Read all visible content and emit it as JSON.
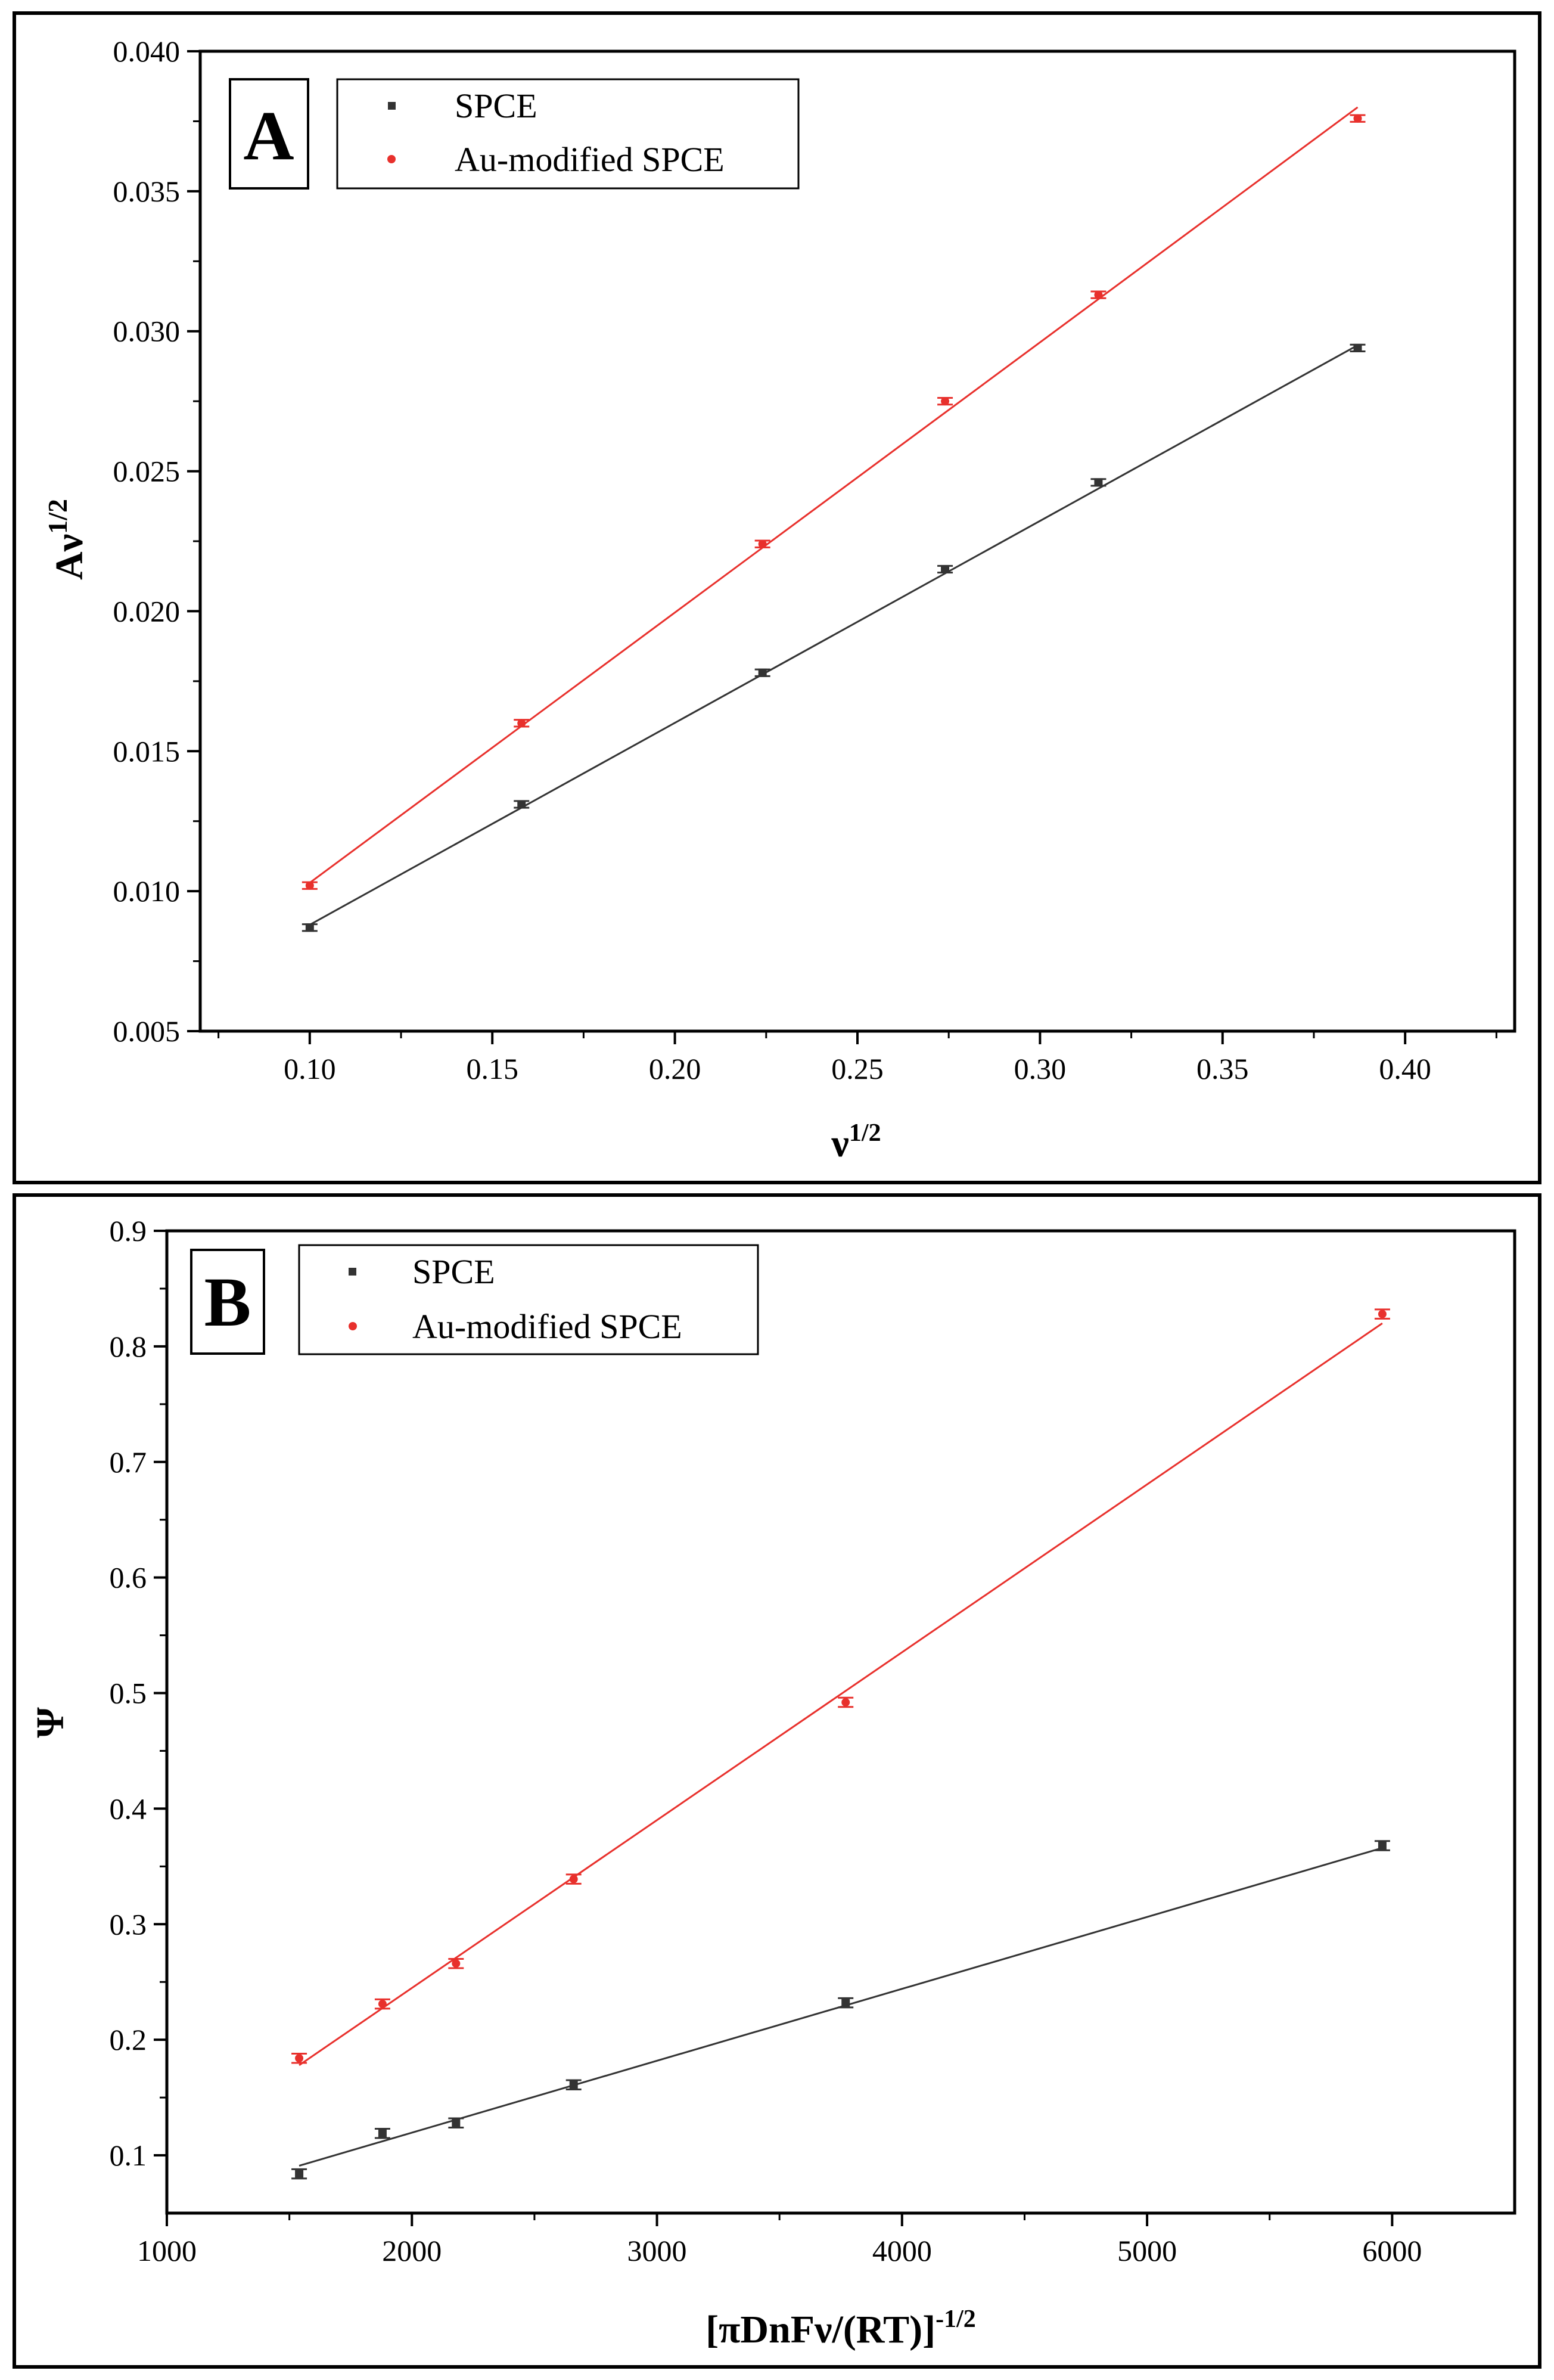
{
  "chart_data": [
    {
      "type": "scatter",
      "panel_label": "A",
      "xlabel": "ν",
      "xlabel_sup": "1/2",
      "ylabel": "Aν",
      "ylabel_sup": "1/2",
      "xlim": [
        0.07,
        0.43
      ],
      "ylim": [
        0.005,
        0.04
      ],
      "xticks": [
        "0.10",
        "0.15",
        "0.20",
        "0.25",
        "0.30",
        "0.35",
        "0.40"
      ],
      "yticks": [
        "0.005",
        "0.010",
        "0.015",
        "0.020",
        "0.025",
        "0.030",
        "0.035",
        "0.040"
      ],
      "legend_position": "top-left",
      "series": [
        {
          "name": "SPCE",
          "color": "#333333",
          "marker": "square",
          "x": [
            0.1,
            0.158,
            0.224,
            0.274,
            0.316,
            0.387
          ],
          "y": [
            0.0087,
            0.0131,
            0.0178,
            0.0215,
            0.0246,
            0.0294
          ],
          "fit": [
            [
              0.1,
              0.0088
            ],
            [
              0.387,
              0.0295
            ]
          ]
        },
        {
          "name": "Au-modified SPCE",
          "color": "#e8302c",
          "marker": "circle",
          "x": [
            0.1,
            0.158,
            0.224,
            0.274,
            0.316,
            0.387
          ],
          "y": [
            0.0102,
            0.016,
            0.0224,
            0.0275,
            0.0313,
            0.0376
          ],
          "fit": [
            [
              0.1,
              0.0103
            ],
            [
              0.387,
              0.038
            ]
          ]
        }
      ]
    },
    {
      "type": "scatter",
      "panel_label": "B",
      "xlabel": "[πDnFν/(RT)]",
      "xlabel_sup": "-1/2",
      "ylabel": "Ψ",
      "xlim": [
        1000,
        6500
      ],
      "ylim": [
        0.05,
        0.9
      ],
      "xticks": [
        "1000",
        "2000",
        "3000",
        "4000",
        "5000",
        "6000"
      ],
      "yticks": [
        "0.1",
        "0.2",
        "0.3",
        "0.4",
        "0.5",
        "0.6",
        "0.7",
        "0.8",
        "0.9"
      ],
      "legend_position": "top-left",
      "series": [
        {
          "name": "SPCE",
          "color": "#333333",
          "marker": "square",
          "x": [
            1540,
            1880,
            2180,
            2660,
            3770,
            5960
          ],
          "y": [
            0.084,
            0.119,
            0.128,
            0.161,
            0.232,
            0.368
          ],
          "fit": [
            [
              1540,
              0.091
            ],
            [
              5960,
              0.366
            ]
          ]
        },
        {
          "name": "Au-modified SPCE",
          "color": "#e8302c",
          "marker": "circle",
          "x": [
            1540,
            1880,
            2180,
            2660,
            3770,
            5960
          ],
          "y": [
            0.184,
            0.231,
            0.266,
            0.339,
            0.492,
            0.828
          ],
          "fit": [
            [
              1540,
              0.178
            ],
            [
              5960,
              0.82
            ]
          ]
        }
      ]
    }
  ]
}
